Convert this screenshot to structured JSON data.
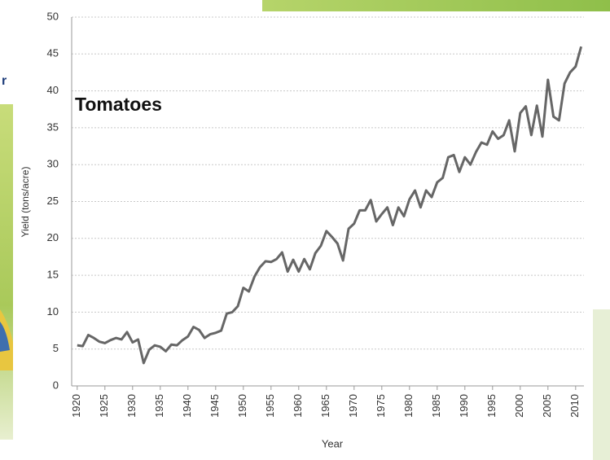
{
  "background_text": "r",
  "chart_data": {
    "type": "line",
    "annotation": "Tomatoes",
    "x_label": "Year",
    "y_label": "Yield (tons/acre)",
    "x": [
      1920,
      1921,
      1922,
      1923,
      1924,
      1925,
      1926,
      1927,
      1928,
      1929,
      1930,
      1931,
      1932,
      1933,
      1934,
      1935,
      1936,
      1937,
      1938,
      1939,
      1940,
      1941,
      1942,
      1943,
      1944,
      1945,
      1946,
      1947,
      1948,
      1949,
      1950,
      1951,
      1952,
      1953,
      1954,
      1955,
      1956,
      1957,
      1958,
      1959,
      1960,
      1961,
      1962,
      1963,
      1964,
      1965,
      1966,
      1967,
      1968,
      1969,
      1970,
      1971,
      1972,
      1973,
      1974,
      1975,
      1976,
      1977,
      1978,
      1979,
      1980,
      1981,
      1982,
      1983,
      1984,
      1985,
      1986,
      1987,
      1988,
      1989,
      1990,
      1991,
      1992,
      1993,
      1994,
      1995,
      1996,
      1997,
      1998,
      1999,
      2000,
      2001,
      2002,
      2003,
      2004,
      2005,
      2006,
      2007,
      2008,
      2009,
      2010,
      2011
    ],
    "series": [
      {
        "name": "Tomatoes",
        "color": "#666666",
        "values": [
          5.5,
          5.4,
          6.9,
          6.5,
          6.0,
          5.8,
          6.2,
          6.5,
          6.3,
          7.3,
          5.9,
          6.3,
          3.1,
          4.9,
          5.5,
          5.3,
          4.7,
          5.6,
          5.5,
          6.2,
          6.7,
          8.0,
          7.6,
          6.5,
          7.0,
          7.2,
          7.5,
          9.8,
          10.0,
          10.8,
          13.3,
          12.8,
          14.8,
          16.1,
          16.9,
          16.8,
          17.2,
          18.1,
          15.5,
          17.1,
          15.5,
          17.2,
          15.8,
          18.0,
          19.0,
          21.0,
          20.2,
          19.3,
          17.0,
          21.3,
          22.0,
          23.8,
          23.8,
          25.2,
          22.3,
          23.3,
          24.2,
          21.8,
          24.2,
          23.0,
          25.3,
          26.5,
          24.2,
          26.5,
          25.6,
          27.6,
          28.2,
          31.0,
          31.3,
          29.0,
          31.0,
          30.0,
          31.7,
          33.0,
          32.7,
          34.5,
          33.5,
          34.0,
          36.0,
          31.8,
          37.0,
          37.9,
          34.0,
          38.0,
          33.8,
          41.5,
          36.5,
          36.0,
          41.0,
          42.5,
          43.3,
          46.0
        ]
      }
    ],
    "xlim": [
      1919,
      2011.5
    ],
    "ylim": [
      0,
      50
    ],
    "xticks": [
      1920,
      1925,
      1930,
      1935,
      1940,
      1945,
      1950,
      1955,
      1960,
      1965,
      1970,
      1975,
      1980,
      1985,
      1990,
      1995,
      2000,
      2005,
      2010
    ],
    "yticks": [
      0,
      5,
      10,
      15,
      20,
      25,
      30,
      35,
      40,
      45,
      50
    ],
    "grid": true
  }
}
